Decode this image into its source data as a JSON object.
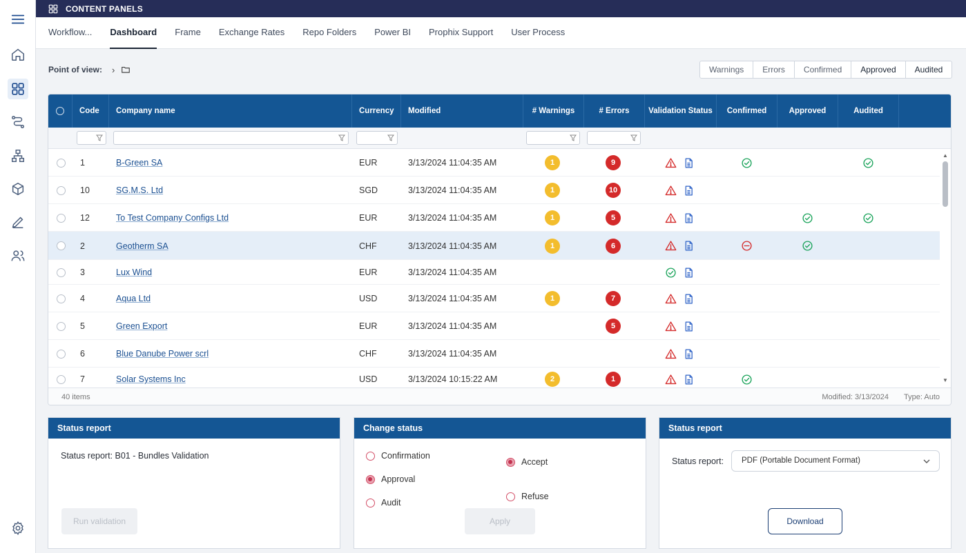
{
  "app": {
    "title": "CONTENT PANELS"
  },
  "rail": {
    "items": [
      {
        "name": "menu-icon"
      },
      {
        "name": "home-icon"
      },
      {
        "name": "dashboard-icon"
      },
      {
        "name": "workflow-icon"
      },
      {
        "name": "hierarchy-icon"
      },
      {
        "name": "cube-icon"
      },
      {
        "name": "edit-icon"
      },
      {
        "name": "users-icon"
      },
      {
        "name": "settings-icon"
      }
    ],
    "active": "dashboard-icon"
  },
  "tabs": [
    {
      "label": "Workflow...",
      "active": false
    },
    {
      "label": "Dashboard",
      "active": true
    },
    {
      "label": "Frame",
      "active": false
    },
    {
      "label": "Exchange Rates",
      "active": false
    },
    {
      "label": "Repo Folders",
      "active": false
    },
    {
      "label": "Power BI",
      "active": false
    },
    {
      "label": "Prophix Support",
      "active": false
    },
    {
      "label": "User Process",
      "active": false
    }
  ],
  "pov": {
    "label": "Point of view:",
    "chevron": "›"
  },
  "status_filters": [
    "Warnings",
    "Errors",
    "Confirmed",
    "Approved",
    "Audited"
  ],
  "grid": {
    "columns": {
      "code": "Code",
      "company": "Company name",
      "currency": "Currency",
      "modified": "Modified",
      "warnings": "# Warnings",
      "errors": "# Errors",
      "validation": "Validation Status",
      "confirmed": "Confirmed",
      "approved": "Approved",
      "audited": "Audited"
    },
    "rows": [
      {
        "code": "1",
        "company": "B-Green SA",
        "currency": "EUR",
        "modified": "3/13/2024 11:04:35 AM",
        "warnings": "1",
        "errors": "9",
        "validation": "warning",
        "confirmed": "ok",
        "approved": "",
        "audited": "ok",
        "selected": false
      },
      {
        "code": "10",
        "company": "SG.M.S. Ltd",
        "currency": "SGD",
        "modified": "3/13/2024 11:04:35 AM",
        "warnings": "1",
        "errors": "10",
        "validation": "warning",
        "confirmed": "",
        "approved": "",
        "audited": "",
        "selected": false
      },
      {
        "code": "12",
        "company": "To Test Company Configs Ltd",
        "currency": "EUR",
        "modified": "3/13/2024 11:04:35 AM",
        "warnings": "1",
        "errors": "5",
        "validation": "warning",
        "confirmed": "",
        "approved": "ok",
        "audited": "ok",
        "selected": false
      },
      {
        "code": "2",
        "company": "Geotherm SA",
        "currency": "CHF",
        "modified": "3/13/2024 11:04:35 AM",
        "warnings": "1",
        "errors": "6",
        "validation": "warning",
        "confirmed": "refused",
        "approved": "ok",
        "audited": "",
        "selected": true
      },
      {
        "code": "3",
        "company": "Lux Wind",
        "currency": "EUR",
        "modified": "3/13/2024 11:04:35 AM",
        "warnings": "",
        "errors": "",
        "validation": "ok",
        "confirmed": "",
        "approved": "",
        "audited": "",
        "selected": false
      },
      {
        "code": "4",
        "company": "Aqua Ltd",
        "currency": "USD",
        "modified": "3/13/2024 11:04:35 AM",
        "warnings": "1",
        "errors": "7",
        "validation": "warning",
        "confirmed": "",
        "approved": "",
        "audited": "",
        "selected": false
      },
      {
        "code": "5",
        "company": "Green Export",
        "currency": "EUR",
        "modified": "3/13/2024 11:04:35 AM",
        "warnings": "",
        "errors": "5",
        "validation": "warning",
        "confirmed": "",
        "approved": "",
        "audited": "",
        "selected": false
      },
      {
        "code": "6",
        "company": "Blue Danube Power scrl",
        "currency": "CHF",
        "modified": "3/13/2024 11:04:35 AM",
        "warnings": "",
        "errors": "",
        "validation": "warning",
        "confirmed": "",
        "approved": "",
        "audited": "",
        "selected": false
      },
      {
        "code": "7",
        "company": "Solar Systems Inc",
        "currency": "USD",
        "modified": "3/13/2024 10:15:22 AM",
        "warnings": "2",
        "errors": "1",
        "validation": "warning",
        "confirmed": "ok",
        "approved": "",
        "audited": "",
        "selected": false
      }
    ],
    "footer": {
      "count": "40 items",
      "modified": "Modified: 3/13/2024",
      "type": "Type: Auto"
    }
  },
  "panels": {
    "status_report_left": {
      "title": "Status report",
      "text": "Status report: B01 - Bundles Validation",
      "button": "Run validation"
    },
    "change_status": {
      "title": "Change status",
      "options": [
        {
          "label": "Confirmation",
          "checked": false
        },
        {
          "label": "Approval",
          "checked": true
        },
        {
          "label": "Audit",
          "checked": false
        }
      ],
      "actions": [
        {
          "label": "Accept",
          "checked": true
        },
        {
          "label": "Refuse",
          "checked": false
        }
      ],
      "button": "Apply"
    },
    "status_report_right": {
      "title": "Status report",
      "label": "Status report:",
      "selected": "PDF (Portable Document Format)",
      "button": "Download"
    }
  },
  "colors": {
    "header": "#145694",
    "topbar": "#262d58",
    "warning": "#f3bd2d",
    "error": "#d42a2a",
    "ok": "#1aa35a"
  }
}
